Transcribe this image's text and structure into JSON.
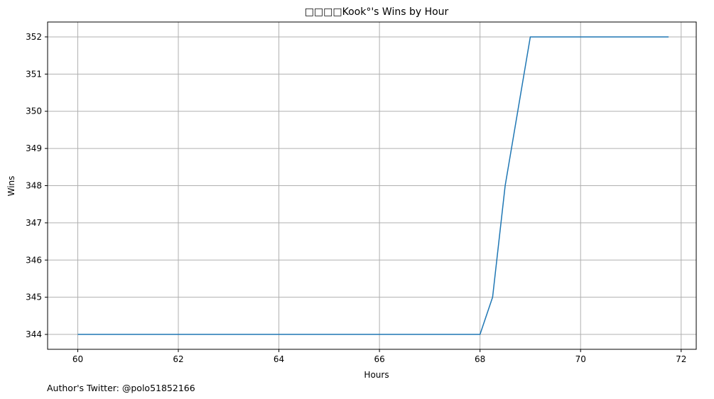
{
  "chart_data": {
    "type": "line",
    "title": "□□□□Kook°'s Wins by Hour",
    "xlabel": "Hours",
    "ylabel": "Wins",
    "xlim": [
      59.4,
      72.3
    ],
    "ylim": [
      343.6,
      352.4
    ],
    "xticks": [
      60,
      62,
      64,
      66,
      68,
      70,
      72
    ],
    "yticks": [
      344,
      345,
      346,
      347,
      348,
      349,
      350,
      351,
      352
    ],
    "grid": true,
    "series": [
      {
        "color": "#1f77b4",
        "x": [
          60,
          60.25,
          60.5,
          60.75,
          61,
          61.25,
          61.5,
          61.75,
          62,
          62.25,
          62.5,
          62.75,
          63,
          63.25,
          63.5,
          63.75,
          64,
          64.25,
          64.5,
          64.75,
          65,
          65.25,
          65.5,
          65.75,
          66,
          66.25,
          66.5,
          66.75,
          67,
          67.25,
          67.5,
          67.75,
          68,
          68.25,
          68.5,
          68.75,
          69,
          69.25,
          69.5,
          69.75,
          70,
          70.25,
          70.5,
          70.75,
          71,
          71.25,
          71.5,
          71.75
        ],
        "values": [
          344,
          344,
          344,
          344,
          344,
          344,
          344,
          344,
          344,
          344,
          344,
          344,
          344,
          344,
          344,
          344,
          344,
          344,
          344,
          344,
          344,
          344,
          344,
          344,
          344,
          344,
          344,
          344,
          344,
          344,
          344,
          344,
          344,
          345,
          348,
          350,
          352,
          352,
          352,
          352,
          352,
          352,
          352,
          352,
          352,
          352,
          352,
          352
        ]
      }
    ]
  },
  "footer": {
    "author_text": "Author's Twitter: @polo51852166"
  }
}
